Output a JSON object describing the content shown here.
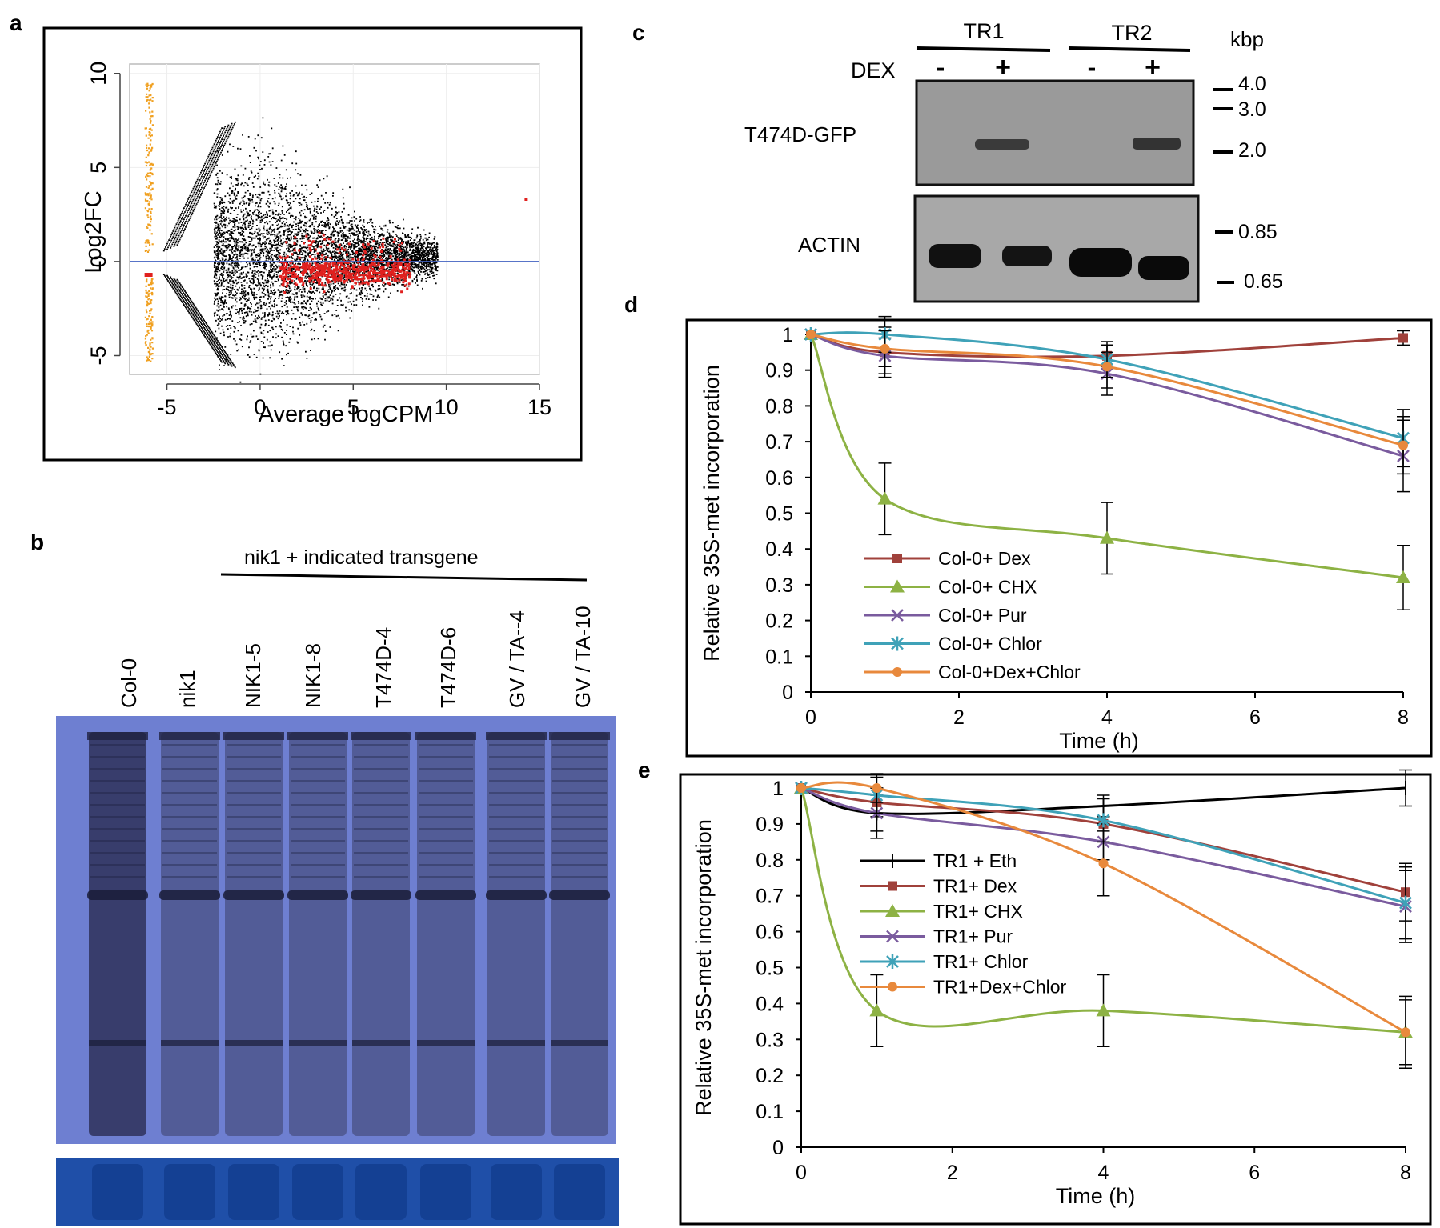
{
  "panels": {
    "a": "a",
    "b": "b",
    "c": "c",
    "d": "d",
    "e": "e"
  },
  "colors": {
    "black": "#000000",
    "red": "#a0413b",
    "green": "#8db244",
    "purple": "#7a5b9e",
    "teal": "#3fa2b8",
    "orange": "#e8893c",
    "scatter_orange": "#f0a020",
    "scatter_red": "#e0201e",
    "hline": "#4060c0",
    "blot_bg": "#6e7fd1",
    "coomassie": "#1f4fa8"
  },
  "chart_data": [
    {
      "panel": "a",
      "type": "scatter",
      "xlabel": "Average logCPM",
      "ylabel": "Log2FC",
      "xlim": [
        -7,
        15
      ],
      "ylim": [
        -6,
        10.5
      ],
      "xticks": [
        "-5",
        "0",
        "5",
        "10",
        "15"
      ],
      "yticks": [
        "-5",
        "0",
        "5",
        "10"
      ],
      "reference_line_y": 0
    },
    {
      "panel": "d",
      "type": "line",
      "xlabel": "Time (h)",
      "ylabel": "Relative 35S-met incorporation",
      "xlim": [
        0,
        8
      ],
      "ylim": [
        0,
        1
      ],
      "xticks": [
        "0",
        "2",
        "4",
        "6",
        "8"
      ],
      "yticks": [
        "0",
        "0.1",
        "0.2",
        "0.3",
        "0.4",
        "0.5",
        "0.6",
        "0.7",
        "0.8",
        "0.9",
        "1"
      ],
      "x": [
        0,
        1,
        4,
        8
      ],
      "series": [
        {
          "name": "Col-0+ Dex",
          "color_key": "red",
          "marker": "square",
          "values": [
            1,
            0.95,
            0.94,
            0.99
          ],
          "err": [
            0,
            0.07,
            0.03,
            0.02
          ]
        },
        {
          "name": "Col-0+ CHX",
          "color_key": "green",
          "marker": "triangle",
          "values": [
            1,
            0.54,
            0.43,
            0.32
          ],
          "err": [
            0,
            0.1,
            0.1,
            0.09
          ]
        },
        {
          "name": "Col-0+ Pur",
          "color_key": "purple",
          "marker": "x",
          "values": [
            1,
            0.94,
            0.89,
            0.66
          ],
          "err": [
            0,
            0.05,
            0.06,
            0.1
          ]
        },
        {
          "name": "Col-0+ Chlor",
          "color_key": "teal",
          "marker": "star",
          "values": [
            1,
            1,
            0.93,
            0.71
          ],
          "err": [
            0,
            0.05,
            0.05,
            0.08
          ]
        },
        {
          "name": "Col-0+Dex+Chlor",
          "color_key": "orange",
          "marker": "circle",
          "values": [
            1,
            0.96,
            0.91,
            0.69
          ],
          "err": [
            0,
            0.05,
            0.06,
            0.08
          ]
        }
      ]
    },
    {
      "panel": "e",
      "type": "line",
      "xlabel": "Time (h)",
      "ylabel": "Relative 35S-met incorporation",
      "xlim": [
        0,
        8
      ],
      "ylim": [
        0,
        1
      ],
      "xticks": [
        "0",
        "2",
        "4",
        "6",
        "8"
      ],
      "yticks": [
        "0",
        "0.1",
        "0.2",
        "0.3",
        "0.4",
        "0.5",
        "0.6",
        "0.7",
        "0.8",
        "0.9",
        "1"
      ],
      "x": [
        0,
        1,
        4,
        8
      ],
      "series": [
        {
          "name": "TR1 + Eth",
          "color_key": "black",
          "marker": "plus",
          "values": [
            1,
            0.93,
            0.95,
            1
          ],
          "err": [
            0,
            0.07,
            0.03,
            0.05
          ]
        },
        {
          "name": "TR1+ Dex",
          "color_key": "red",
          "marker": "square",
          "values": [
            1,
            0.96,
            0.9,
            0.71
          ],
          "err": [
            0,
            0.04,
            0.05,
            0.08
          ]
        },
        {
          "name": "TR1+ CHX",
          "color_key": "green",
          "marker": "triangle",
          "values": [
            1,
            0.38,
            0.38,
            0.32
          ],
          "err": [
            0,
            0.1,
            0.1,
            0.1
          ]
        },
        {
          "name": "TR1+ Pur",
          "color_key": "purple",
          "marker": "x",
          "values": [
            1,
            0.93,
            0.85,
            0.67
          ],
          "err": [
            0,
            0.05,
            0.05,
            0.1
          ]
        },
        {
          "name": "TR1+ Chlor",
          "color_key": "teal",
          "marker": "star",
          "values": [
            1,
            0.98,
            0.91,
            0.68
          ],
          "err": [
            0,
            0.05,
            0.06,
            0.1
          ]
        },
        {
          "name": "TR1+Dex+Chlor",
          "color_key": "orange",
          "marker": "circle",
          "values": [
            1,
            1,
            0.79,
            0.32
          ],
          "err": [
            0,
            0.04,
            0.09,
            0.09
          ]
        }
      ]
    }
  ],
  "panel_b": {
    "header": "nik1 + indicated transgene",
    "lanes": [
      "Col-0",
      "nik1",
      "NIK1-5",
      "NIK1-8",
      "T474D-4",
      "T474D-6",
      "GV / TA--4",
      "GV / TA-10"
    ]
  },
  "panel_c": {
    "groups": [
      "TR1",
      "TR2"
    ],
    "unit": "kbp",
    "dex_label": "DEX",
    "dex_states": [
      "-",
      "+",
      "-",
      "+"
    ],
    "rows": [
      "T474D-GFP",
      "ACTIN"
    ],
    "markers_top": [
      "4.0",
      "3.0",
      "2.0"
    ],
    "markers_bottom": [
      "0.85",
      "0.65"
    ]
  }
}
